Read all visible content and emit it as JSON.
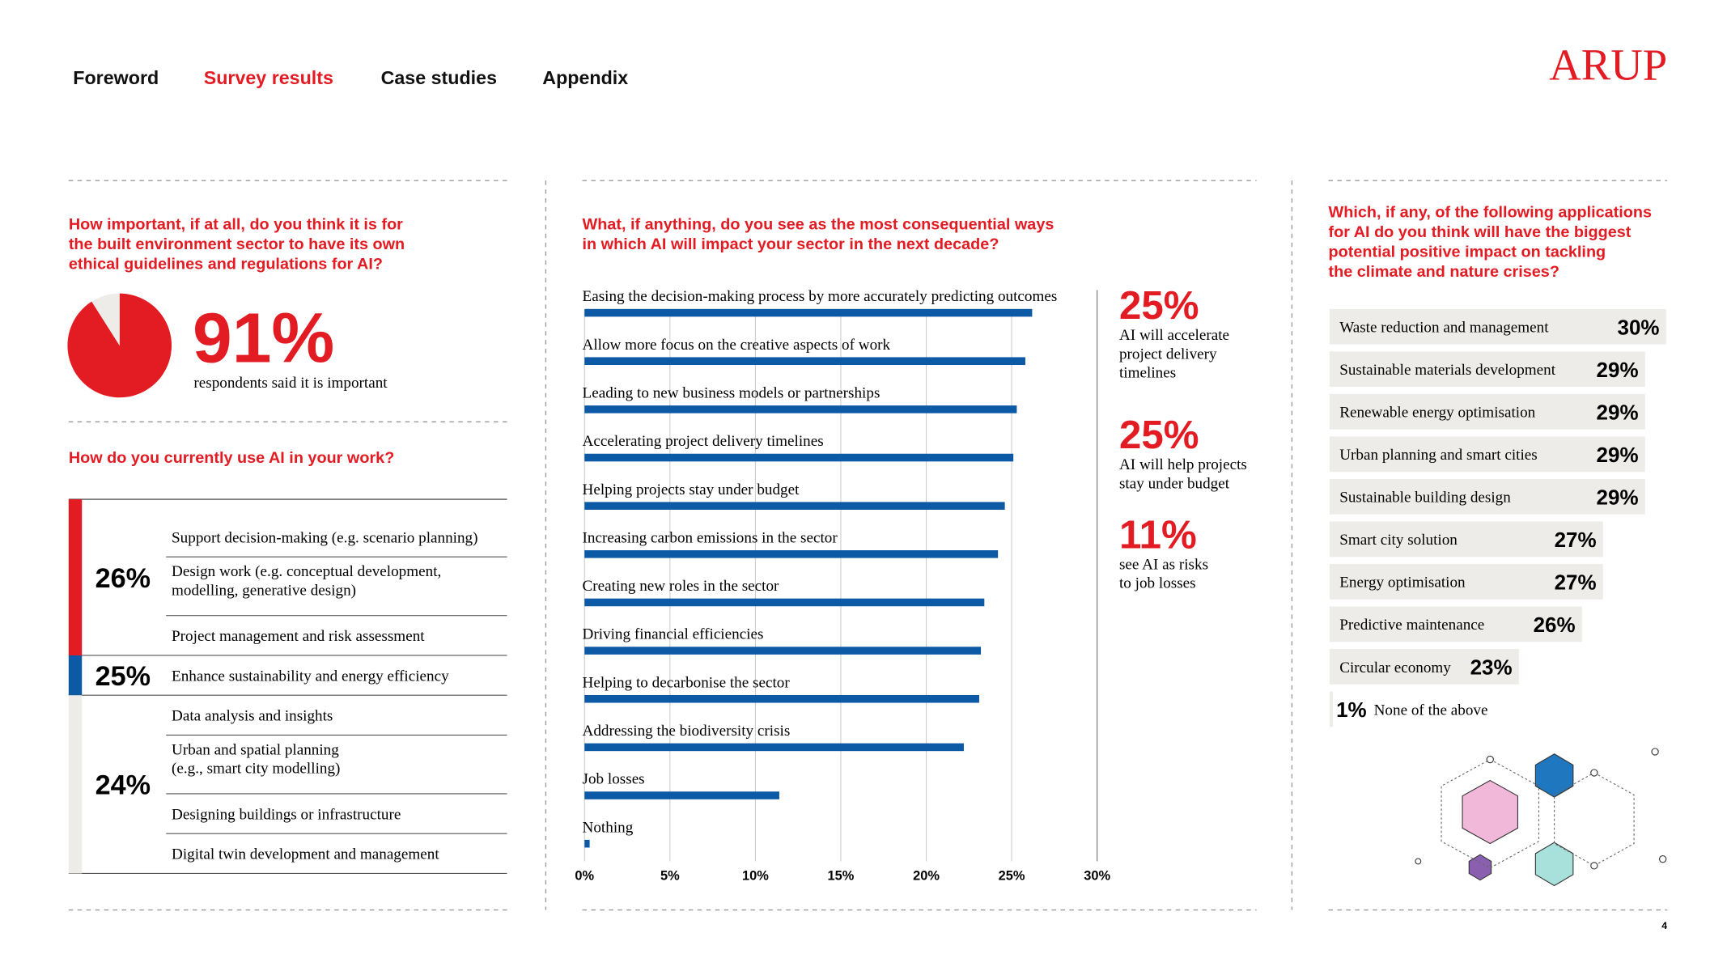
{
  "nav": [
    "Foreword",
    "Survey results",
    "Case studies",
    "Appendix"
  ],
  "active_nav": 1,
  "logo": "ARUP",
  "page_number": "4",
  "importance": {
    "question": [
      "How important, if at all, do you think it is for",
      "the built environment sector to have its own",
      "ethical guidelines and regulations for AI?"
    ],
    "value": 91,
    "value_label": "91%",
    "caption": "respondents said it is important"
  },
  "usage": {
    "question": "How do you currently use AI in your work?",
    "groups": [
      {
        "label": "26%",
        "color": "#e31b23",
        "items": [
          [
            "Support decision-making (e.g. scenario planning)"
          ],
          [
            "Design work (e.g. conceptual development,",
            "modelling, generative design)"
          ],
          [
            "Project management and risk assessment"
          ]
        ]
      },
      {
        "label": "25%",
        "color": "#0c5aa6",
        "items": [
          [
            "Enhance sustainability and energy efficiency"
          ]
        ]
      },
      {
        "label": "24%",
        "color": "#eeece9",
        "items": [
          [
            "Data analysis and insights"
          ],
          [
            "Urban and spatial planning",
            "(e.g., smart city modelling)"
          ],
          [
            "Designing buildings or infrastructure"
          ],
          [
            "Digital twin development and management"
          ]
        ]
      }
    ]
  },
  "chart_data": {
    "type": "bar",
    "title": [
      "What, if anything, do you see as the most consequential ways",
      "in which AI will impact your sector in the next decade?"
    ],
    "categories": [
      "Easing the decision-making process by more accurately predicting outcomes",
      "Allow more focus on the creative aspects of work",
      "Leading to new business models or partnerships",
      "Accelerating project delivery timelines",
      "Helping projects stay under budget",
      "Increasing carbon emissions in the sector",
      "Creating new roles in the sector",
      "Driving financial efficiencies",
      "Helping to decarbonise the sector",
      "Addressing the biodiversity crisis",
      "Job losses",
      "Nothing"
    ],
    "values": [
      26.2,
      25.8,
      25.3,
      25.1,
      24.6,
      24.2,
      23.4,
      23.2,
      23.1,
      22.2,
      11.4,
      0.3
    ],
    "color": "#0c5aa6",
    "xlim": [
      0,
      30
    ],
    "xticks": [
      {
        "value": 0,
        "label": "0%"
      },
      {
        "value": 5,
        "label": "5%"
      },
      {
        "value": 10,
        "label": "10%"
      },
      {
        "value": 15,
        "label": "15%"
      },
      {
        "value": 20,
        "label": "20%"
      },
      {
        "value": 25,
        "label": "25%"
      },
      {
        "value": 30,
        "label": "30%"
      }
    ],
    "grid": true
  },
  "highlights": [
    {
      "label": "25%",
      "text": [
        "AI will accelerate",
        "project delivery",
        "timelines"
      ]
    },
    {
      "label": "25%",
      "text": [
        "AI will help projects",
        "stay under budget"
      ]
    },
    {
      "label": "11%",
      "text": [
        "see AI as risks",
        "to job losses"
      ]
    }
  ],
  "applications": {
    "question": [
      "Which, if any, of the following applications",
      "for AI do you think will have the biggest",
      "potential positive impact on tackling",
      "the climate and nature crises?"
    ],
    "items": [
      {
        "name": "Waste reduction and management",
        "value": 30,
        "label": "30%"
      },
      {
        "name": "Sustainable materials development",
        "value": 29,
        "label": "29%"
      },
      {
        "name": "Renewable energy optimisation",
        "value": 29,
        "label": "29%"
      },
      {
        "name": "Urban planning and smart cities",
        "value": 29,
        "label": "29%"
      },
      {
        "name": "Sustainable building design",
        "value": 29,
        "label": "29%"
      },
      {
        "name": "Smart city solution",
        "value": 27,
        "label": "27%"
      },
      {
        "name": "Energy optimisation",
        "value": 27,
        "label": "27%"
      },
      {
        "name": "Predictive maintenance",
        "value": 26,
        "label": "26%"
      },
      {
        "name": "Circular economy",
        "value": 23,
        "label": "23%"
      },
      {
        "name": "None of the above",
        "value": 1,
        "label": "1%"
      }
    ]
  }
}
